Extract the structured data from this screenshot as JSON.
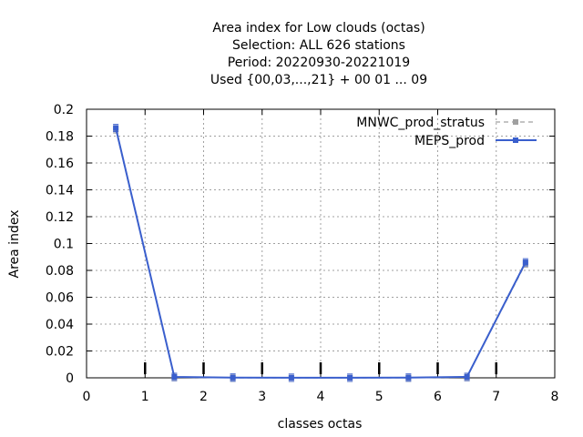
{
  "chart_data": {
    "type": "line",
    "title_lines": [
      "Area index  for Low clouds (octas)",
      "Selection: ALL    626 stations",
      "Period: 20220930-20221019",
      "Used {00,03,...,21} + 00 01 ... 09"
    ],
    "xlabel": "classes octas",
    "ylabel": "Area index",
    "xlim": [
      0,
      8
    ],
    "ylim": [
      0,
      0.2
    ],
    "x_ticks": [
      0,
      1,
      2,
      3,
      4,
      5,
      6,
      7,
      8
    ],
    "y_ticks": [
      0,
      0.02,
      0.04,
      0.06,
      0.08,
      0.1,
      0.12,
      0.14,
      0.16,
      0.18,
      0.2
    ],
    "x_tick_labels": [
      "0",
      "1",
      "2",
      "3",
      "4",
      "5",
      "6",
      "7",
      "8"
    ],
    "y_tick_labels": [
      "0",
      "0.02",
      "0.04",
      "0.06",
      "0.08",
      "0.1",
      "0.12",
      "0.14",
      "0.16",
      "0.18",
      "0.2"
    ],
    "grid": true,
    "legend_position": "top-right",
    "series": [
      {
        "name": "MNWC_prod_stratus",
        "color": "#a0a0a0",
        "dashed": true,
        "x": [
          0.5,
          1.5,
          2.5,
          3.5,
          4.5,
          5.5,
          6.5,
          7.5
        ],
        "y": [
          0.185,
          0.0005,
          0.0,
          0.0,
          0.0,
          0.0,
          0.0005,
          0.085
        ]
      },
      {
        "name": "MEPS_prod",
        "color": "#3a5fcd",
        "dashed": false,
        "x": [
          0.5,
          1.5,
          2.5,
          3.5,
          4.5,
          5.5,
          6.5,
          7.5
        ],
        "y": [
          0.186,
          0.0007,
          0.0002,
          0.0001,
          0.0001,
          0.0002,
          0.0007,
          0.086
        ]
      }
    ],
    "bars_x": [
      1,
      2,
      3,
      4,
      5,
      6,
      7
    ]
  }
}
